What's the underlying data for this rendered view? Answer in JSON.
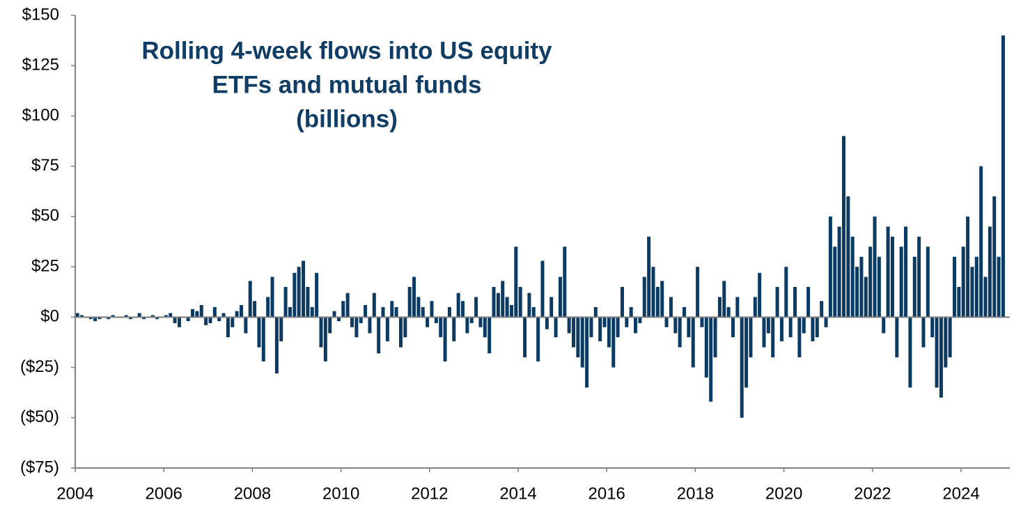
{
  "chart_data": {
    "type": "bar",
    "title": [
      "Rolling 4-week flows into US equity",
      "ETFs and mutual funds",
      "(billions)"
    ],
    "color": "#0b3a63",
    "xlim": [
      2004,
      2025.1
    ],
    "xticks": [
      2004,
      2006,
      2008,
      2010,
      2012,
      2014,
      2016,
      2018,
      2020,
      2022,
      2024
    ],
    "ylim": [
      -75,
      150
    ],
    "yticks": [
      {
        "value": 150,
        "label": "$150"
      },
      {
        "value": 125,
        "label": "$125"
      },
      {
        "value": 100,
        "label": "$100"
      },
      {
        "value": 75,
        "label": "$75"
      },
      {
        "value": 50,
        "label": "$50"
      },
      {
        "value": 25,
        "label": "$25"
      },
      {
        "value": 0,
        "label": "$0"
      },
      {
        "value": -25,
        "label": "($25)"
      },
      {
        "value": -50,
        "label": "($50)"
      },
      {
        "value": -75,
        "label": "($75)"
      }
    ],
    "x": [
      2004.05,
      2004.15,
      2004.25,
      2004.35,
      2004.45,
      2004.55,
      2004.65,
      2004.75,
      2004.85,
      2004.95,
      2005.05,
      2005.15,
      2005.25,
      2005.35,
      2005.45,
      2005.55,
      2005.65,
      2005.75,
      2005.85,
      2005.95,
      2006.05,
      2006.15,
      2006.25,
      2006.35,
      2006.45,
      2006.55,
      2006.65,
      2006.75,
      2006.85,
      2006.95,
      2007.05,
      2007.15,
      2007.25,
      2007.35,
      2007.45,
      2007.55,
      2007.65,
      2007.75,
      2007.85,
      2007.95,
      2008.05,
      2008.15,
      2008.25,
      2008.35,
      2008.45,
      2008.55,
      2008.65,
      2008.75,
      2008.85,
      2008.95,
      2009.05,
      2009.15,
      2009.25,
      2009.35,
      2009.45,
      2009.55,
      2009.65,
      2009.75,
      2009.85,
      2009.95,
      2010.05,
      2010.15,
      2010.25,
      2010.35,
      2010.45,
      2010.55,
      2010.65,
      2010.75,
      2010.85,
      2010.95,
      2011.05,
      2011.15,
      2011.25,
      2011.35,
      2011.45,
      2011.55,
      2011.65,
      2011.75,
      2011.85,
      2011.95,
      2012.05,
      2012.15,
      2012.25,
      2012.35,
      2012.45,
      2012.55,
      2012.65,
      2012.75,
      2012.85,
      2012.95,
      2013.05,
      2013.15,
      2013.25,
      2013.35,
      2013.45,
      2013.55,
      2013.65,
      2013.75,
      2013.85,
      2013.95,
      2014.05,
      2014.15,
      2014.25,
      2014.35,
      2014.45,
      2014.55,
      2014.65,
      2014.75,
      2014.85,
      2014.95,
      2015.05,
      2015.15,
      2015.25,
      2015.35,
      2015.45,
      2015.55,
      2015.65,
      2015.75,
      2015.85,
      2015.95,
      2016.05,
      2016.15,
      2016.25,
      2016.35,
      2016.45,
      2016.55,
      2016.65,
      2016.75,
      2016.85,
      2016.95,
      2017.05,
      2017.15,
      2017.25,
      2017.35,
      2017.45,
      2017.55,
      2017.65,
      2017.75,
      2017.85,
      2017.95,
      2018.05,
      2018.15,
      2018.25,
      2018.35,
      2018.45,
      2018.55,
      2018.65,
      2018.75,
      2018.85,
      2018.95,
      2019.05,
      2019.15,
      2019.25,
      2019.35,
      2019.45,
      2019.55,
      2019.65,
      2019.75,
      2019.85,
      2019.95,
      2020.05,
      2020.15,
      2020.25,
      2020.35,
      2020.45,
      2020.55,
      2020.65,
      2020.75,
      2020.85,
      2020.95,
      2021.05,
      2021.15,
      2021.25,
      2021.35,
      2021.45,
      2021.55,
      2021.65,
      2021.75,
      2021.85,
      2021.95,
      2022.05,
      2022.15,
      2022.25,
      2022.35,
      2022.45,
      2022.55,
      2022.65,
      2022.75,
      2022.85,
      2022.95,
      2023.05,
      2023.15,
      2023.25,
      2023.35,
      2023.45,
      2023.55,
      2023.65,
      2023.75,
      2023.85,
      2023.95,
      2024.05,
      2024.15,
      2024.25,
      2024.35,
      2024.45,
      2024.55,
      2024.65,
      2024.75,
      2024.85,
      2024.95
    ],
    "values": [
      2,
      1,
      0,
      -1,
      -2,
      -1,
      0,
      -1,
      1,
      0,
      0,
      1,
      -1,
      0,
      2,
      -1,
      0,
      1,
      -1,
      0,
      1,
      2,
      -3,
      -5,
      0,
      -2,
      4,
      3,
      6,
      -4,
      -3,
      5,
      -2,
      2,
      -10,
      -5,
      3,
      6,
      -8,
      18,
      8,
      -15,
      -22,
      10,
      20,
      -28,
      -12,
      15,
      5,
      22,
      25,
      28,
      15,
      5,
      22,
      -15,
      -22,
      -8,
      3,
      -2,
      8,
      12,
      -5,
      -10,
      -3,
      6,
      -8,
      12,
      -18,
      5,
      -12,
      8,
      5,
      -15,
      -10,
      15,
      20,
      10,
      5,
      -5,
      8,
      -3,
      -10,
      -22,
      5,
      -12,
      12,
      8,
      -8,
      -3,
      10,
      -5,
      -10,
      -18,
      15,
      12,
      18,
      10,
      6,
      35,
      15,
      -20,
      12,
      5,
      -22,
      28,
      -6,
      10,
      -10,
      20,
      35,
      -8,
      -15,
      -20,
      -25,
      -35,
      -10,
      5,
      -12,
      -5,
      -15,
      -25,
      -10,
      15,
      -5,
      5,
      -8,
      -3,
      20,
      40,
      25,
      15,
      18,
      -5,
      10,
      -8,
      -15,
      5,
      -10,
      -25,
      25,
      -5,
      -30,
      -42,
      -20,
      10,
      18,
      5,
      -10,
      10,
      -50,
      -35,
      -20,
      10,
      22,
      -15,
      -8,
      -20,
      15,
      -12,
      25,
      -10,
      15,
      -20,
      -8,
      15,
      -12,
      -10,
      8,
      -5,
      50,
      35,
      45,
      90,
      60,
      40,
      25,
      30,
      20,
      35,
      50,
      30,
      -8,
      45,
      40,
      -20,
      35,
      45,
      -35,
      30,
      40,
      -15,
      35,
      -10,
      -35,
      -40,
      -25,
      -20,
      30,
      15,
      35,
      50,
      25,
      30,
      75,
      20,
      45,
      60,
      30,
      140
    ]
  }
}
